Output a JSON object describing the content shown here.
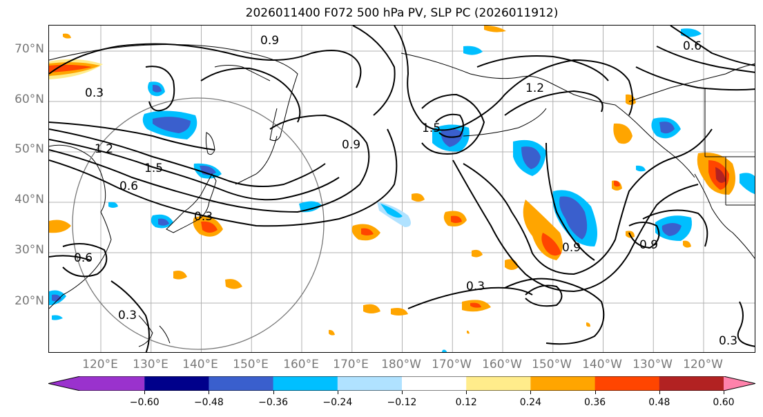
{
  "title": "2026011400 F072 500 hPa PV, SLP PC (2026011912)",
  "latitude_labels": [
    "70°N",
    "60°N",
    "50°N",
    "40°N",
    "30°N",
    "20°N"
  ],
  "longitude_labels": [
    "120°E",
    "130°E",
    "140°E",
    "150°E",
    "160°E",
    "170°E",
    "180°W",
    "170°W",
    "160°W",
    "150°W",
    "140°W",
    "130°W",
    "120°W"
  ],
  "contour_labels": [
    "0.9",
    "1.2",
    "1.5",
    "0.6",
    "0.3",
    "0.9",
    "1.2",
    "1.5",
    "0.3",
    "0.6",
    "0.9",
    "0.3",
    "0.3",
    "0.9",
    "0.6",
    "0.3"
  ],
  "colorbar": {
    "tick_labels": [
      "−0.60",
      "−0.48",
      "−0.36",
      "−0.24",
      "−0.12",
      "0.12",
      "0.24",
      "0.36",
      "0.48",
      "0.60"
    ],
    "colors": [
      "#9a32cd",
      "#00008b",
      "#3a5fcd",
      "#00bfff",
      "#b0e2ff",
      "#ffffff",
      "#ffec8b",
      "#ffa500",
      "#ff4500",
      "#b22222",
      "#ff82ab"
    ]
  }
}
